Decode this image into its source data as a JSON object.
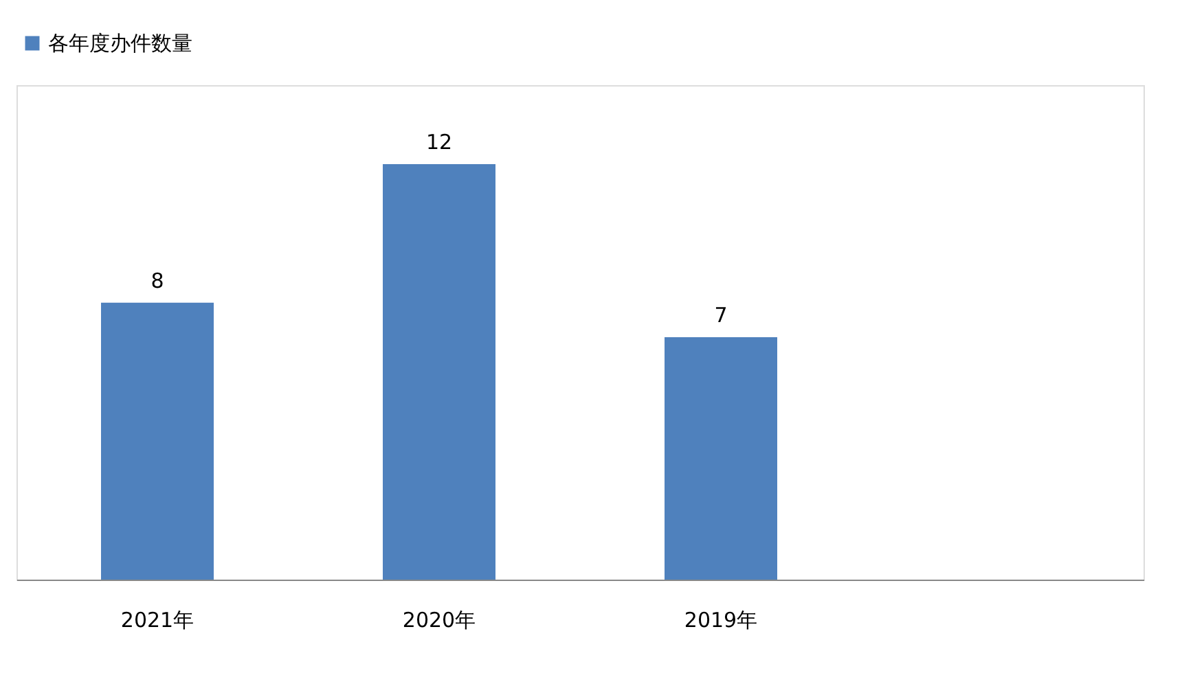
{
  "chart_data": {
    "type": "bar",
    "categories": [
      "2021年",
      "2020年",
      "2019年",
      null
    ],
    "series": [
      {
        "name": "各年度办件数量",
        "color": "#4f81bd",
        "values": [
          8,
          12,
          7,
          null
        ]
      }
    ],
    "data_labels": true,
    "legend": "top",
    "grid": false
  }
}
